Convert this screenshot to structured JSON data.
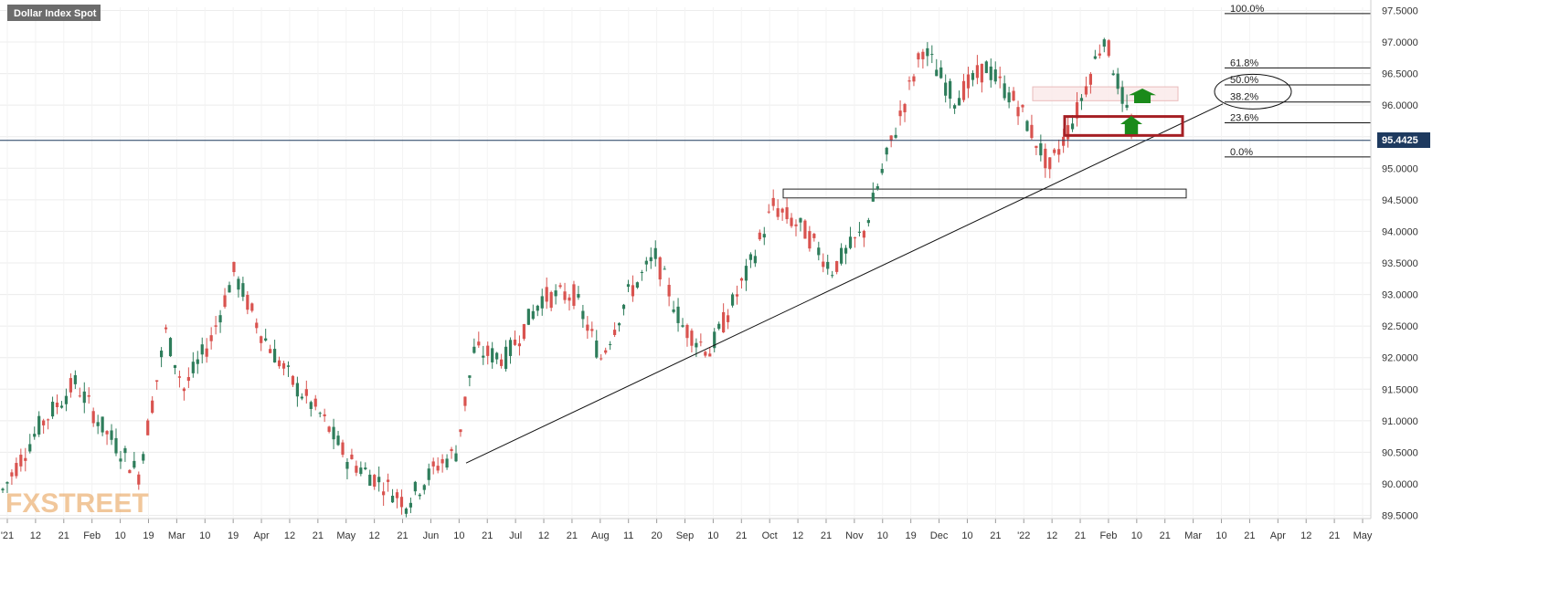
{
  "chart_title": "Dollar Index Spot",
  "watermark": "FXSTREET",
  "colors": {
    "up": "#2e7d5b",
    "down": "#d9534f",
    "price_line": "#1e3a5f",
    "support_box": "#a51f24",
    "resistance_zone": "#e8b4b4",
    "arrow": "#1a8a1a",
    "background": "#ffffff",
    "grid": "#ececec"
  },
  "chart_data": {
    "type": "candlestick",
    "instrument": "Dollar Index Spot",
    "ylim": [
      89.45,
      97.55
    ],
    "y_ticks": [
      "89.5000",
      "90.0000",
      "90.5000",
      "91.0000",
      "91.5000",
      "92.0000",
      "92.5000",
      "93.0000",
      "93.5000",
      "94.0000",
      "94.5000",
      "95.0000",
      "95.5000",
      "96.0000",
      "96.5000",
      "97.0000",
      "97.5000"
    ],
    "x_ticks": [
      "'21",
      "12",
      "21",
      "Feb",
      "10",
      "19",
      "Mar",
      "10",
      "19",
      "Apr",
      "12",
      "21",
      "May",
      "12",
      "21",
      "Jun",
      "10",
      "21",
      "Jul",
      "12",
      "21",
      "Aug",
      "11",
      "20",
      "Sep",
      "10",
      "21",
      "Oct",
      "12",
      "21",
      "Nov",
      "10",
      "19",
      "Dec",
      "10",
      "21",
      "'22",
      "12",
      "21",
      "Feb",
      "10",
      "21",
      "Mar",
      "10",
      "21",
      "Apr",
      "12",
      "21",
      "May"
    ],
    "current_price": "95.4425",
    "current_price_value": 95.4425,
    "fibonacci": [
      {
        "label": "100.0%",
        "value": 97.45
      },
      {
        "label": "61.8%",
        "value": 96.59
      },
      {
        "label": "50.0%",
        "value": 96.32
      },
      {
        "label": "38.2%",
        "value": 96.05
      },
      {
        "label": "23.6%",
        "value": 95.72
      },
      {
        "label": "0.0%",
        "value": 95.18
      }
    ],
    "support_zone": {
      "high": 94.67,
      "low": 94.53
    },
    "highlight_zone": {
      "high": 95.82,
      "low": 95.52
    },
    "resistance_zone": {
      "high": 96.29,
      "low": 96.07
    },
    "trendline": [
      {
        "bar": 0,
        "value": 90.33
      },
      {
        "bar": 1,
        "value": 96.02
      }
    ],
    "ohlc_knots": [
      [
        0,
        89.9
      ],
      [
        8,
        90.9
      ],
      [
        16,
        91.6
      ],
      [
        22,
        90.9
      ],
      [
        30,
        90.15
      ],
      [
        36,
        92.4
      ],
      [
        40,
        91.5
      ],
      [
        46,
        92.3
      ],
      [
        51,
        93.35
      ],
      [
        57,
        92.4
      ],
      [
        64,
        91.6
      ],
      [
        70,
        91.1
      ],
      [
        76,
        90.4
      ],
      [
        84,
        90.0
      ],
      [
        89,
        89.7
      ],
      [
        96,
        90.3
      ],
      [
        100,
        90.5
      ],
      [
        104,
        92.1
      ],
      [
        111,
        92.0
      ],
      [
        119,
        92.95
      ],
      [
        126,
        93.0
      ],
      [
        132,
        92.0
      ],
      [
        138,
        93.0
      ],
      [
        144,
        93.6
      ],
      [
        150,
        92.5
      ],
      [
        156,
        92.1
      ],
      [
        164,
        93.3
      ],
      [
        170,
        94.4
      ],
      [
        177,
        94.0
      ],
      [
        183,
        93.4
      ],
      [
        190,
        94.0
      ],
      [
        196,
        95.4
      ],
      [
        203,
        96.9
      ],
      [
        210,
        96.1
      ],
      [
        217,
        96.6
      ],
      [
        224,
        96.0
      ],
      [
        231,
        95.0
      ],
      [
        237,
        95.9
      ],
      [
        243,
        97.1
      ],
      [
        250,
        95.4
      ]
    ]
  }
}
